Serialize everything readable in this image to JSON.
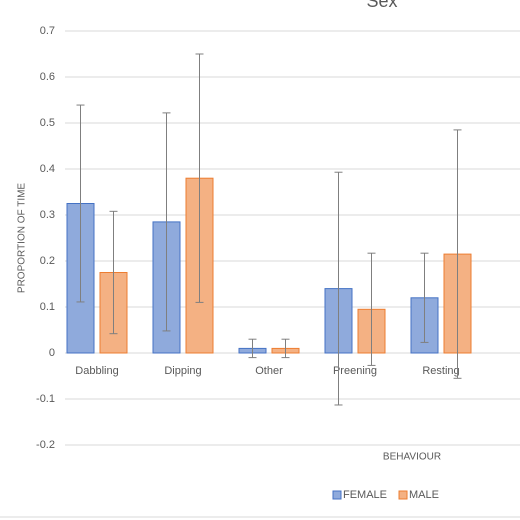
{
  "chart_data": {
    "type": "bar",
    "title": "Sex",
    "x_label": "BEHAVIOUR",
    "y_label": "PROPORTION OF TIME",
    "categories": [
      "Dabbling",
      "Dipping",
      "Other",
      "Preening",
      "Resting"
    ],
    "series": [
      {
        "name": "FEMALE",
        "color": "#8faadc",
        "edge": "#4472c4",
        "values": [
          0.325,
          0.285,
          0.01,
          0.14,
          0.12
        ],
        "errors": [
          0.214,
          0.237,
          0.02,
          0.253,
          0.097
        ]
      },
      {
        "name": "MALE",
        "color": "#f4b183",
        "edge": "#ed7d31",
        "values": [
          0.175,
          0.38,
          0.01,
          0.095,
          0.215
        ],
        "errors": [
          0.133,
          0.27,
          0.02,
          0.122,
          0.27
        ]
      }
    ],
    "ylim": [
      -0.2,
      0.7
    ],
    "yticks": [
      -0.2,
      -0.1,
      0,
      0.1,
      0.2,
      0.3,
      0.4,
      0.5,
      0.6,
      0.7
    ],
    "grid": true,
    "legend": "bottom"
  }
}
